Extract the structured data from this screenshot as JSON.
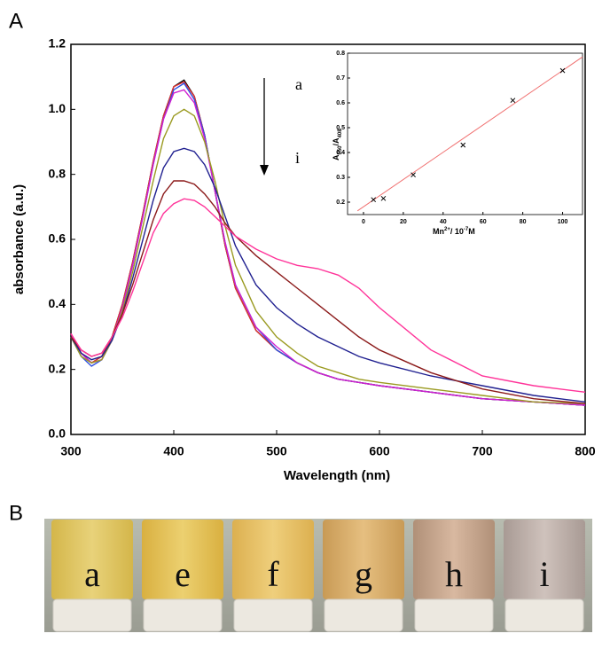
{
  "panel_labels": [
    "A",
    "B"
  ],
  "chart_data": [
    {
      "type": "line",
      "xlabel": "Wavelength (nm)",
      "ylabel": "absorbance (a.u.)",
      "annotations": [
        "a",
        "i"
      ],
      "xlim": [
        300,
        800
      ],
      "xticks": [
        300,
        400,
        500,
        600,
        700,
        800
      ],
      "ylim": [
        0,
        1.2
      ],
      "yticks": [
        {
          "value": 0,
          "label": "0.0"
        },
        0.2,
        0.4,
        0.6,
        0.8,
        {
          "value": 1,
          "label": "1.0"
        },
        1.2
      ],
      "x": [
        300,
        310,
        320,
        330,
        340,
        350,
        360,
        370,
        380,
        390,
        400,
        410,
        420,
        430,
        440,
        450,
        460,
        480,
        500,
        520,
        540,
        560,
        580,
        600,
        650,
        700,
        750,
        800
      ],
      "series": [
        {
          "color": "#000000",
          "values": [
            0.31,
            0.25,
            0.22,
            0.24,
            0.3,
            0.4,
            0.53,
            0.68,
            0.84,
            0.98,
            1.07,
            1.09,
            1.04,
            0.92,
            0.75,
            0.58,
            0.45,
            0.32,
            0.26,
            0.22,
            0.19,
            0.17,
            0.16,
            0.15,
            0.13,
            0.11,
            0.1,
            0.09
          ]
        },
        {
          "color": "#e03030",
          "values": [
            0.31,
            0.25,
            0.22,
            0.24,
            0.3,
            0.4,
            0.53,
            0.68,
            0.84,
            0.98,
            1.07,
            1.085,
            1.04,
            0.92,
            0.75,
            0.58,
            0.45,
            0.32,
            0.26,
            0.22,
            0.19,
            0.17,
            0.16,
            0.15,
            0.13,
            0.11,
            0.1,
            0.09
          ]
        },
        {
          "color": "#3050e0",
          "values": [
            0.3,
            0.24,
            0.21,
            0.23,
            0.29,
            0.39,
            0.52,
            0.67,
            0.83,
            0.97,
            1.06,
            1.08,
            1.03,
            0.92,
            0.75,
            0.59,
            0.46,
            0.33,
            0.26,
            0.22,
            0.19,
            0.17,
            0.16,
            0.15,
            0.13,
            0.11,
            0.1,
            0.09
          ]
        },
        {
          "color": "#d020d0",
          "values": [
            0.31,
            0.25,
            0.22,
            0.23,
            0.29,
            0.39,
            0.52,
            0.67,
            0.83,
            0.97,
            1.05,
            1.06,
            1.02,
            0.91,
            0.75,
            0.59,
            0.46,
            0.33,
            0.27,
            0.22,
            0.19,
            0.17,
            0.16,
            0.15,
            0.13,
            0.11,
            0.1,
            0.09
          ]
        },
        {
          "color": "#9a9a20",
          "values": [
            0.3,
            0.24,
            0.22,
            0.23,
            0.29,
            0.38,
            0.5,
            0.64,
            0.78,
            0.91,
            0.98,
            1.0,
            0.98,
            0.9,
            0.78,
            0.64,
            0.52,
            0.38,
            0.3,
            0.25,
            0.21,
            0.19,
            0.17,
            0.16,
            0.14,
            0.12,
            0.1,
            0.095
          ]
        },
        {
          "color": "#202090",
          "values": [
            0.3,
            0.25,
            0.23,
            0.24,
            0.29,
            0.37,
            0.48,
            0.6,
            0.72,
            0.82,
            0.87,
            0.88,
            0.87,
            0.83,
            0.76,
            0.67,
            0.58,
            0.46,
            0.39,
            0.34,
            0.3,
            0.27,
            0.24,
            0.22,
            0.18,
            0.15,
            0.12,
            0.1
          ]
        },
        {
          "color": "#8b1a1a",
          "values": [
            0.3,
            0.26,
            0.24,
            0.25,
            0.3,
            0.37,
            0.46,
            0.56,
            0.66,
            0.74,
            0.78,
            0.78,
            0.77,
            0.74,
            0.7,
            0.65,
            0.61,
            0.55,
            0.5,
            0.45,
            0.4,
            0.35,
            0.3,
            0.26,
            0.19,
            0.14,
            0.11,
            0.095
          ]
        },
        {
          "color": "#ff3399",
          "values": [
            0.31,
            0.26,
            0.24,
            0.25,
            0.3,
            0.36,
            0.44,
            0.53,
            0.62,
            0.68,
            0.71,
            0.725,
            0.72,
            0.7,
            0.67,
            0.64,
            0.61,
            0.57,
            0.54,
            0.52,
            0.51,
            0.49,
            0.45,
            0.39,
            0.26,
            0.18,
            0.15,
            0.13
          ]
        }
      ]
    },
    {
      "type": "scatter",
      "xlabel": [
        "Mn",
        "2+",
        "/ 10",
        "-7",
        "M"
      ],
      "ylabel": [
        "A",
        "550",
        "/A",
        "408"
      ],
      "xlim": [
        -8,
        110
      ],
      "xticks": [
        0,
        20,
        40,
        60,
        80,
        100
      ],
      "ylim": [
        0.15,
        0.8
      ],
      "yticks": [
        0.2,
        0.3,
        0.4,
        0.5,
        0.6,
        0.7,
        0.8
      ],
      "color": "#000000",
      "x": [
        5,
        10,
        25,
        50,
        75,
        100
      ],
      "values": [
        0.21,
        0.215,
        0.31,
        0.43,
        0.61,
        0.73
      ],
      "fit": {
        "color": "#f07070",
        "x": [
          -3,
          110
        ],
        "values": [
          0.165,
          0.785
        ]
      }
    }
  ],
  "photo": {
    "labels": [
      "a",
      "e",
      "f",
      "g",
      "h",
      "i"
    ]
  }
}
